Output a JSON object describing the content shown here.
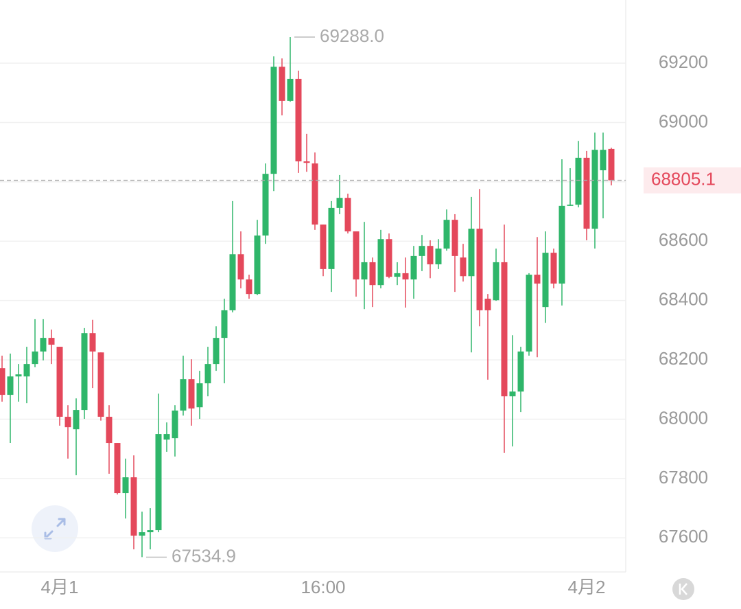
{
  "chart_data": {
    "type": "candlestick",
    "categories": [
      null,
      null,
      null,
      null,
      null,
      null,
      null,
      "4月1",
      null,
      null,
      null,
      null,
      null,
      null,
      null,
      null,
      null,
      null,
      null,
      null,
      null,
      null,
      null,
      null,
      null,
      null,
      null,
      null,
      null,
      null,
      null,
      null,
      null,
      null,
      null,
      null,
      null,
      null,
      null,
      "16:00",
      null,
      null,
      null,
      null,
      null,
      null,
      null,
      null,
      null,
      null,
      null,
      null,
      null,
      null,
      null,
      null,
      null,
      null,
      null,
      null,
      null,
      null,
      null,
      null,
      null,
      null,
      null,
      null,
      null,
      null,
      null,
      "4月2",
      null,
      null,
      null
    ],
    "open": [
      68172,
      68082,
      68144,
      68144,
      68186,
      68228,
      68274,
      68244,
      68008,
      67966,
      68031,
      68290,
      68225,
      68008,
      67920,
      67751,
      67804,
      67607,
      67619,
      67626,
      67931,
      67936,
      68029,
      68135,
      68040,
      68121,
      68186,
      68274,
      68367,
      68556,
      68471,
      68422,
      68619,
      68827,
      69188,
      69073,
      69147,
      68869,
      68862,
      68656,
      68506,
      68712,
      68746,
      68633,
      68471,
      68529,
      68452,
      68607,
      68480,
      68492,
      68471,
      68550,
      68584,
      68522,
      68575,
      68672,
      68545,
      68482,
      68642,
      68406,
      68401,
      68529,
      68077,
      68093,
      68228,
      68487,
      68378,
      68561,
      68457,
      68719,
      68723,
      68881,
      68642,
      68839,
      68911
    ],
    "high": [
      68214,
      68221,
      68186,
      68244,
      68337,
      68337,
      68302,
      68244,
      68047,
      68070,
      68307,
      68335,
      68225,
      68047,
      67920,
      67867,
      67878,
      67688,
      67700,
      68086,
      67989,
      68047,
      68214,
      68202,
      68163,
      68244,
      68313,
      68406,
      68735,
      68633,
      68487,
      68672,
      68862,
      69223,
      69216,
      69288,
      69175,
      68962,
      68899,
      68656,
      68735,
      68823,
      68760,
      68633,
      68665,
      68545,
      68638,
      68626,
      68529,
      68545,
      68584,
      68621,
      68603,
      68607,
      68707,
      68691,
      68591,
      68749,
      68776,
      68422,
      68575,
      68656,
      68283,
      68244,
      68492,
      68614,
      68633,
      68575,
      68876,
      68846,
      68938,
      68904,
      68966,
      68966,
      68915
    ],
    "low": [
      68059,
      67920,
      68059,
      68054,
      68175,
      68198,
      68186,
      67978,
      67867,
      67811,
      68001,
      68105,
      67995,
      67816,
      67746,
      67665,
      67561,
      67534.9,
      67561,
      67619,
      67890,
      67874,
      68012,
      67978,
      68001,
      68077,
      68163,
      68121,
      68360,
      68441,
      68406,
      68418,
      68591,
      68769,
      69024,
      69070,
      68830,
      68834,
      68638,
      68482,
      68429,
      68691,
      68626,
      68413,
      68371,
      68378,
      68441,
      68475,
      68452,
      68376,
      68406,
      68499,
      68475,
      68506,
      68568,
      68429,
      68464,
      68225,
      68313,
      68133,
      68399,
      67886,
      67908,
      68024,
      68214,
      68209,
      68325,
      68441,
      68383,
      68719,
      68714,
      68603,
      68575,
      68677,
      68788
    ],
    "close": [
      68082,
      68144,
      68151,
      68186,
      68228,
      68274,
      68251,
      68008,
      67973,
      68031,
      68290,
      68228,
      68008,
      67920,
      67751,
      67804,
      67607,
      67619,
      67626,
      67950,
      67950,
      68029,
      68135,
      68036,
      68121,
      68186,
      68274,
      68367,
      68556,
      68471,
      68422,
      68619,
      68827,
      69188,
      69073,
      69147,
      68869,
      68864,
      68656,
      68506,
      68712,
      68746,
      68633,
      68471,
      68529,
      68452,
      68607,
      68480,
      68492,
      68471,
      68550,
      68584,
      68522,
      68575,
      68672,
      68550,
      68482,
      68642,
      68367,
      68367,
      68529,
      68077,
      68093,
      68228,
      68487,
      68457,
      68561,
      68457,
      68719,
      68723,
      68881,
      68642,
      68908,
      68908,
      68805.1
    ],
    "up_color": "#2fb66a",
    "down_color": "#e4485b",
    "ylim": [
      67485,
      69413
    ],
    "yticks": [
      67600,
      67800,
      68000,
      68200,
      68400,
      68600,
      68800,
      69000,
      69200
    ],
    "grid": true,
    "last_price": 68805.1,
    "annotations": [
      {
        "value": 69288,
        "label": "69288.0"
      },
      {
        "value": 67534.9,
        "label": "67534.9"
      }
    ]
  }
}
